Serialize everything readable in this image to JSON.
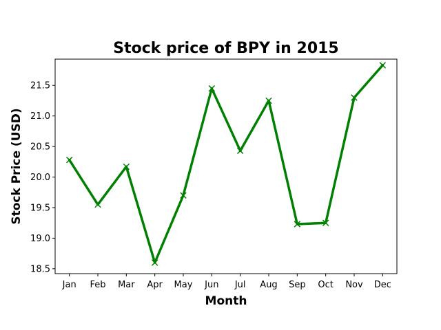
{
  "chart_data": {
    "type": "line",
    "title": "Stock price of BPY in 2015",
    "xlabel": "Month",
    "ylabel": "Stock Price (USD)",
    "categories": [
      "Jan",
      "Feb",
      "Mar",
      "Apr",
      "May",
      "Jun",
      "Jul",
      "Aug",
      "Sep",
      "Oct",
      "Nov",
      "Dec"
    ],
    "series": [
      {
        "values": [
          20.28,
          19.55,
          20.17,
          18.6,
          19.7,
          21.45,
          20.43,
          21.25,
          19.23,
          19.25,
          21.3,
          21.83
        ],
        "color": "#008000",
        "marker": "x"
      }
    ],
    "ylim": [
      18.42,
      21.93
    ],
    "yticks": [
      "18.5",
      "19.0",
      "19.5",
      "20.0",
      "20.5",
      "21.0",
      "21.5"
    ],
    "grid": false,
    "legend": "none"
  }
}
